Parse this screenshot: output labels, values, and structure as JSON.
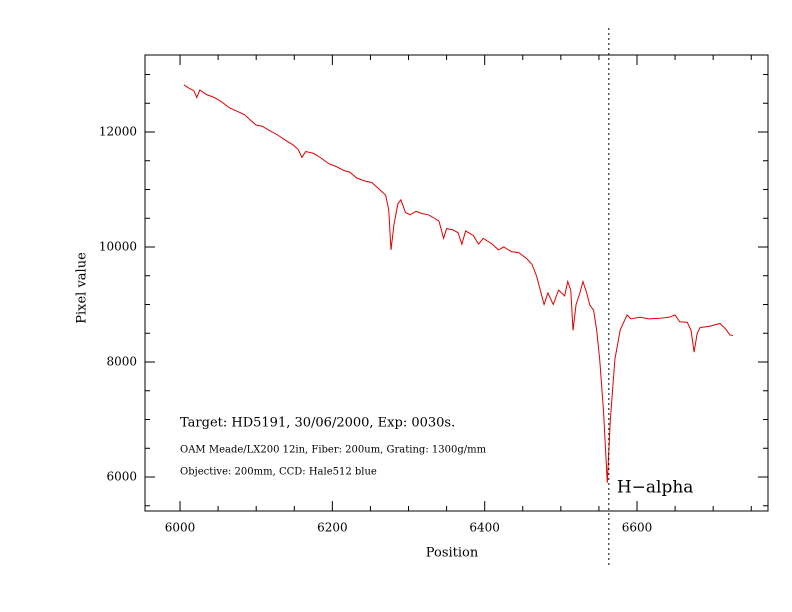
{
  "chart_data": {
    "type": "line",
    "xlabel": "Position",
    "ylabel": "Pixel value",
    "annotations": [
      "Target: HD5191, 30/06/2000, Exp: 0030s.",
      "OAM Meade/LX200 12in, Fiber: 200um, Grating: 1300g/mm",
      "Objective: 200mm, CCD: Hale512 blue"
    ],
    "vline": {
      "x": 6563,
      "label": "H−alpha"
    },
    "color": "#e00000",
    "xlim": [
      5954,
      6772
    ],
    "ylim": [
      5409,
      13339
    ],
    "xticks": [
      6000,
      6200,
      6400,
      6600
    ],
    "yticks": [
      6000,
      8000,
      10000,
      12000
    ],
    "xminorticks": [
      6050,
      6100,
      6150,
      6250,
      6300,
      6350,
      6450,
      6500,
      6550,
      6650,
      6700,
      6750
    ],
    "yminorticks": [
      5500,
      6500,
      7000,
      7500,
      8500,
      9000,
      9500,
      10500,
      11000,
      11500,
      12500,
      13000
    ],
    "x": [
      6005,
      6012,
      6018,
      6022,
      6026,
      6035,
      6045,
      6055,
      6065,
      6075,
      6085,
      6092,
      6100,
      6108,
      6118,
      6128,
      6138,
      6148,
      6155,
      6160,
      6165,
      6175,
      6185,
      6195,
      6205,
      6215,
      6223,
      6232,
      6242,
      6252,
      6262,
      6270,
      6274,
      6277,
      6281,
      6286,
      6290,
      6296,
      6302,
      6310,
      6318,
      6326,
      6334,
      6340,
      6346,
      6350,
      6358,
      6365,
      6370,
      6375,
      6385,
      6392,
      6398,
      6410,
      6418,
      6425,
      6435,
      6445,
      6455,
      6462,
      6468,
      6474,
      6478,
      6483,
      6490,
      6497,
      6505,
      6509,
      6513,
      6516,
      6520,
      6525,
      6529,
      6534,
      6538,
      6543,
      6547,
      6551,
      6556,
      6561,
      6565,
      6571,
      6578,
      6587,
      6592,
      6604,
      6615,
      6630,
      6643,
      6650,
      6656,
      6666,
      6671,
      6675,
      6679,
      6683,
      6695,
      6709,
      6716,
      6722,
      6726
    ],
    "values": [
      12820,
      12760,
      12720,
      12600,
      12730,
      12650,
      12600,
      12520,
      12420,
      12360,
      12300,
      12210,
      12120,
      12100,
      12020,
      11950,
      11860,
      11780,
      11700,
      11560,
      11660,
      11630,
      11550,
      11450,
      11400,
      11330,
      11300,
      11200,
      11150,
      11120,
      11000,
      10900,
      10650,
      9950,
      10400,
      10750,
      10820,
      10600,
      10560,
      10620,
      10580,
      10560,
      10500,
      10450,
      10150,
      10320,
      10300,
      10250,
      10050,
      10280,
      10200,
      10050,
      10150,
      10050,
      9950,
      10000,
      9920,
      9900,
      9800,
      9700,
      9500,
      9200,
      9000,
      9200,
      9000,
      9250,
      9150,
      9400,
      9250,
      8550,
      9000,
      9200,
      9400,
      9200,
      8990,
      8900,
      8560,
      8050,
      7150,
      5900,
      7000,
      8050,
      8560,
      8820,
      8750,
      8780,
      8750,
      8760,
      8780,
      8820,
      8700,
      8690,
      8550,
      8170,
      8500,
      8600,
      8620,
      8670,
      8580,
      8470,
      8460
    ]
  }
}
